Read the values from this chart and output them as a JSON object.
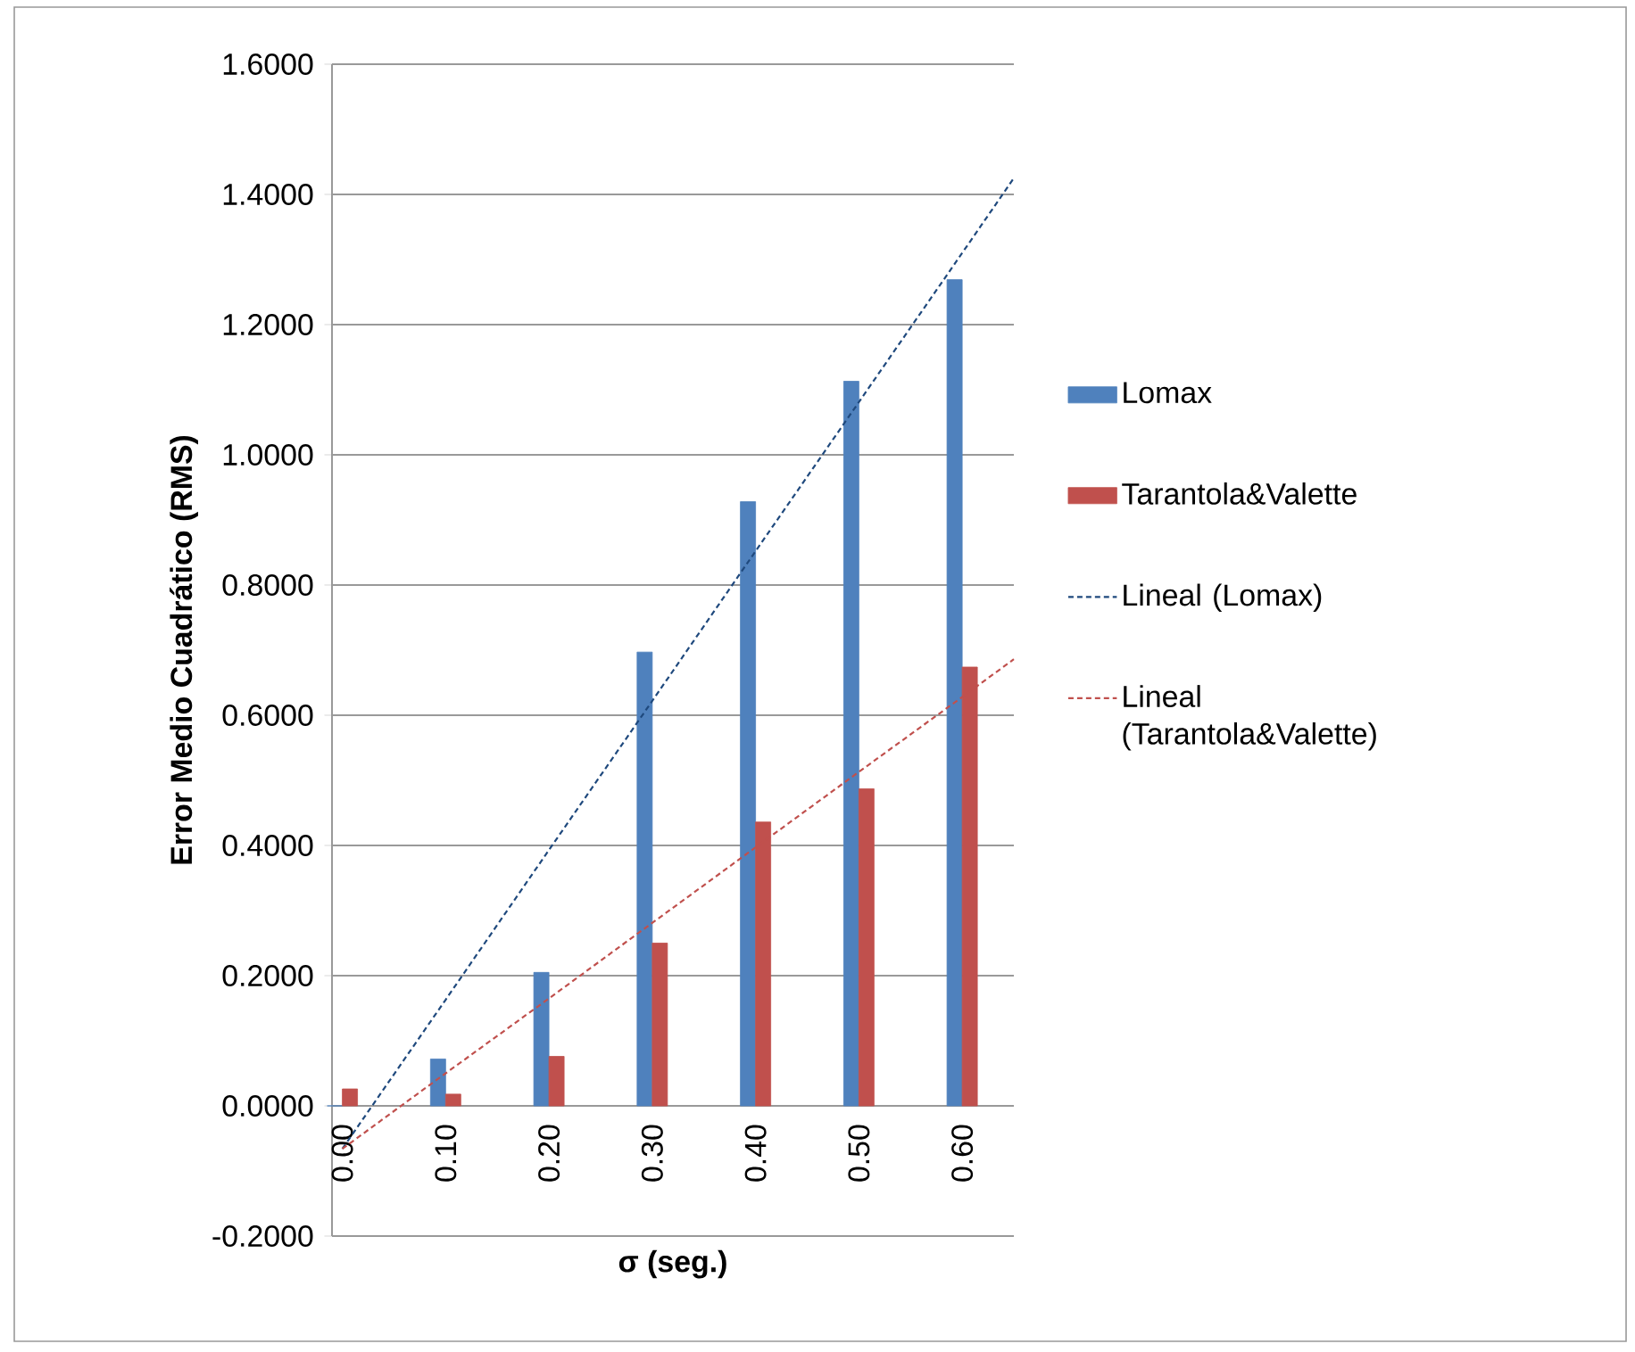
{
  "chart_data": {
    "type": "bar",
    "xlabel": "σ (seg.)",
    "ylabel": "Error Medio Cuadrático (RMS)",
    "x": [
      0,
      0.1,
      0.2,
      0.3,
      0.4,
      0.5,
      0.6
    ],
    "xlim": [
      -0.01,
      0.65
    ],
    "xticks": [
      {
        "value": 0,
        "label": "0.00"
      },
      {
        "value": 0.1,
        "label": "0.10"
      },
      {
        "value": 0.2,
        "label": "0.20"
      },
      {
        "value": 0.3,
        "label": "0.30"
      },
      {
        "value": 0.4,
        "label": "0.40"
      },
      {
        "value": 0.5,
        "label": "0.50"
      },
      {
        "value": 0.6,
        "label": "0.60"
      }
    ],
    "series": [
      {
        "name": "Lomax",
        "color": "#4f81bd",
        "values": [
          0,
          0.072,
          0.205,
          0.697,
          0.928,
          1.113,
          1.269
        ]
      },
      {
        "name": "Tarantola&Valette",
        "color": "#c0504d",
        "values": [
          0.026,
          0.018,
          0.076,
          0.25,
          0.436,
          0.487,
          0.674
        ]
      },
      {
        "name": "Lineal (Lomax)",
        "type": "line",
        "line_style": "dashed",
        "color": "#1f497d",
        "x": [
          0,
          0.1,
          0.2,
          0.3,
          0.4,
          0.5,
          0.6,
          0.65
        ],
        "values": [
          -0.066,
          0.163,
          0.393,
          0.622,
          0.852,
          1.081,
          1.31,
          1.425
        ]
      },
      {
        "name": "Lineal (Tarantola&Valette)",
        "type": "line",
        "line_style": "dashed",
        "color": "#c0504d",
        "x": [
          0,
          0.1,
          0.2,
          0.3,
          0.4,
          0.5,
          0.6,
          0.65
        ],
        "values": [
          -0.066,
          0.05,
          0.165,
          0.281,
          0.397,
          0.513,
          0.628,
          0.686
        ]
      }
    ],
    "ylim": [
      -0.2,
      1.6
    ],
    "yticks": [
      {
        "value": -0.2,
        "label": "-0.2000"
      },
      {
        "value": 0,
        "label": "0.0000"
      },
      {
        "value": 0.2,
        "label": "0.2000"
      },
      {
        "value": 0.4,
        "label": "0.4000"
      },
      {
        "value": 0.6,
        "label": "0.6000"
      },
      {
        "value": 0.8,
        "label": "0.8000"
      },
      {
        "value": 1.0,
        "label": "1.0000"
      },
      {
        "value": 1.2,
        "label": "1.2000"
      },
      {
        "value": 1.4,
        "label": "1.4000"
      },
      {
        "value": 1.6,
        "label": "1.6000"
      }
    ],
    "grid": "y",
    "legend": "right"
  }
}
